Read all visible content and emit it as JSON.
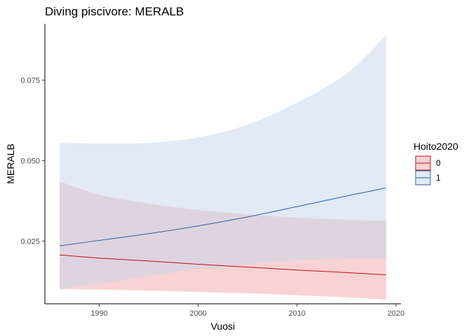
{
  "chart_data": {
    "type": "line",
    "title": "Diving piscivore: MERALB",
    "xlabel": "Vuosi",
    "ylabel": "MERALB",
    "xlim": [
      1984.5,
      2020.5
    ],
    "ylim": [
      0.0055,
      0.0925
    ],
    "x_ticks": [
      1990,
      2000,
      2010,
      2020
    ],
    "y_ticks": [
      0.025,
      0.05,
      0.075
    ],
    "x_tick_labels": [
      "1990",
      "2000",
      "2010",
      "2020"
    ],
    "y_tick_labels": [
      "0.025",
      "0.050",
      "0.075"
    ],
    "grid": false,
    "legend": {
      "title": "Hoito2020",
      "position": "right"
    },
    "series": [
      {
        "name": "0",
        "color": "#c0101a",
        "band_color": "#f4a6a8",
        "x": [
          1986,
          1990,
          1995,
          2000,
          2005,
          2010,
          2015,
          2019
        ],
        "y": [
          0.0207,
          0.0197,
          0.0188,
          0.0178,
          0.0169,
          0.016,
          0.0152,
          0.0145
        ],
        "lower": [
          0.01,
          0.0099,
          0.0096,
          0.0092,
          0.0088,
          0.0082,
          0.0075,
          0.0068
        ],
        "upper": [
          0.0435,
          0.0394,
          0.0366,
          0.0347,
          0.0333,
          0.0323,
          0.0316,
          0.0313
        ]
      },
      {
        "name": "1",
        "color": "#2a5fa8",
        "band_color": "#c3d6ec",
        "x": [
          1986,
          1990,
          1995,
          2000,
          2005,
          2010,
          2015,
          2019
        ],
        "y": [
          0.0235,
          0.0252,
          0.0273,
          0.0297,
          0.0325,
          0.0357,
          0.039,
          0.0415
        ],
        "lower": [
          0.01,
          0.0118,
          0.0142,
          0.0162,
          0.0178,
          0.019,
          0.0194,
          0.0195
        ],
        "upper": [
          0.0555,
          0.0553,
          0.0555,
          0.0572,
          0.0612,
          0.068,
          0.077,
          0.089
        ]
      }
    ]
  }
}
